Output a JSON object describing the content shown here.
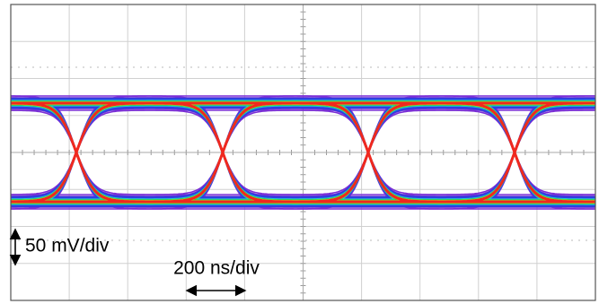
{
  "annotations": {
    "vertical_scale": "50 mV/div",
    "horizontal_scale": "200 ns/div"
  }
}
